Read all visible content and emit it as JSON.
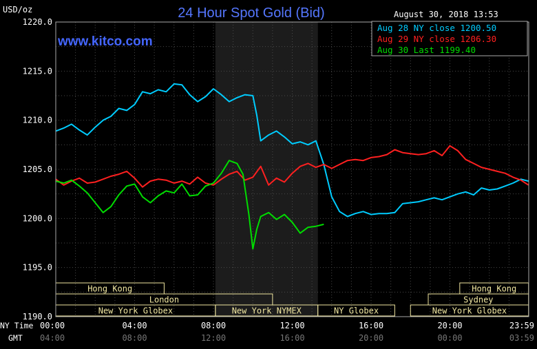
{
  "chart_data": {
    "type": "line",
    "title": "24 Hour Spot Gold (Bid)",
    "ylabel": "USD/oz",
    "website": "www.kitco.com",
    "timestamp": "August 30, 2018 13:53",
    "ylim": [
      1190,
      1220
    ],
    "y_ticks": [
      "1220.0",
      "1215.0",
      "1210.0",
      "1205.0",
      "1200.0",
      "1195.0",
      "1190.0"
    ],
    "xlim": [
      0,
      24
    ],
    "x_ticks_ny": [
      "00:00",
      "04:00",
      "08:00",
      "12:00",
      "16:00",
      "20:00",
      "23:59"
    ],
    "x_ticks_gmt": [
      "04:00",
      "08:00",
      "12:00",
      "16:00",
      "20:00",
      "00:00",
      "03:59"
    ],
    "x_axis_label_ny": "NY Time",
    "x_axis_label_gmt": "GMT",
    "shaded_range": [
      8.1,
      13.3
    ],
    "grid": true,
    "legend_position": "top-right",
    "legend": [
      "Aug 28 NY close 1200.50",
      "Aug 29 NY close 1206.30",
      "Aug 30 Last 1199.40"
    ],
    "colors": {
      "aug28": "#00ccff",
      "aug29": "#ff2020",
      "aug30": "#00dd00",
      "title": "#5577ff",
      "website": "#4466ff",
      "session": "#f0e6a0"
    },
    "sessions": [
      {
        "name": "Hong Kong",
        "start": 0,
        "end": 5.5,
        "row": 0
      },
      {
        "name": "London",
        "start": 0,
        "end": 11,
        "row": 1
      },
      {
        "name": "New York Globex",
        "start": 0,
        "end": 8.1,
        "row": 2
      },
      {
        "name": "New York NYMEX",
        "start": 8.1,
        "end": 13.3,
        "row": 2
      },
      {
        "name": "NY Globex",
        "start": 13.3,
        "end": 17.2,
        "row": 2
      },
      {
        "name": "Hong Kong",
        "start": 20.5,
        "end": 23.99,
        "row": 0
      },
      {
        "name": "Sydney",
        "start": 18.9,
        "end": 23.99,
        "row": 1
      },
      {
        "name": "New York Globex",
        "start": 18,
        "end": 23.99,
        "row": 2
      }
    ],
    "series": [
      {
        "name": "Aug 28 NY close 1200.50",
        "x": [
          0,
          0.4,
          0.8,
          1.2,
          1.6,
          2.0,
          2.4,
          2.8,
          3.2,
          3.6,
          4.0,
          4.4,
          4.8,
          5.2,
          5.6,
          6.0,
          6.4,
          6.8,
          7.2,
          7.6,
          8.0,
          8.4,
          8.8,
          9.2,
          9.6,
          10.0,
          10.2,
          10.4,
          10.8,
          11.2,
          11.6,
          12.0,
          12.4,
          12.8,
          13.2,
          13.6,
          14.0,
          14.4,
          14.8,
          15.2,
          15.6,
          16.0,
          16.4,
          16.8,
          17.2,
          17.6,
          18.0,
          18.4,
          18.8,
          19.2,
          19.6,
          20.0,
          20.4,
          20.8,
          21.2,
          21.6,
          22.0,
          22.4,
          22.8,
          23.2,
          23.6,
          23.99
        ],
        "values": [
          1208.9,
          1209.2,
          1209.6,
          1209.0,
          1208.5,
          1209.3,
          1210.0,
          1210.4,
          1211.2,
          1211.0,
          1211.6,
          1212.9,
          1212.7,
          1213.1,
          1212.9,
          1213.7,
          1213.6,
          1212.6,
          1211.9,
          1212.4,
          1213.2,
          1212.6,
          1211.9,
          1212.3,
          1212.6,
          1212.5,
          1210.5,
          1207.9,
          1208.5,
          1208.9,
          1208.3,
          1207.6,
          1207.8,
          1207.5,
          1207.9,
          1205.5,
          1202.2,
          1200.7,
          1200.2,
          1200.5,
          1200.7,
          1200.4,
          1200.5,
          1200.5,
          1200.6,
          1201.5,
          1201.6,
          1201.7,
          1201.9,
          1202.1,
          1201.9,
          1202.2,
          1202.5,
          1202.7,
          1202.4,
          1203.1,
          1202.9,
          1203.0,
          1203.3,
          1203.6,
          1204.0,
          1203.8
        ]
      },
      {
        "name": "Aug 29 NY close 1206.30",
        "x": [
          0,
          0.4,
          0.8,
          1.2,
          1.6,
          2.0,
          2.4,
          2.8,
          3.2,
          3.6,
          4.0,
          4.4,
          4.8,
          5.2,
          5.6,
          6.0,
          6.4,
          6.8,
          7.2,
          7.6,
          8.0,
          8.4,
          8.8,
          9.2,
          9.6,
          10.0,
          10.4,
          10.8,
          11.2,
          11.6,
          12.0,
          12.4,
          12.8,
          13.2,
          13.6,
          14.0,
          14.4,
          14.8,
          15.2,
          15.6,
          16.0,
          16.4,
          16.8,
          17.2,
          17.6,
          18.0,
          18.4,
          18.8,
          19.2,
          19.6,
          20.0,
          20.4,
          20.8,
          21.2,
          21.6,
          22.0,
          22.4,
          22.8,
          23.2,
          23.6,
          23.99
        ],
        "values": [
          1204.0,
          1203.4,
          1203.8,
          1204.1,
          1203.6,
          1203.7,
          1204.0,
          1204.3,
          1204.5,
          1204.8,
          1204.1,
          1203.2,
          1203.8,
          1204.0,
          1203.9,
          1203.6,
          1203.8,
          1203.5,
          1204.2,
          1203.6,
          1203.4,
          1204.0,
          1204.5,
          1204.8,
          1203.9,
          1204.2,
          1205.3,
          1203.4,
          1204.1,
          1203.7,
          1204.6,
          1205.3,
          1205.6,
          1205.2,
          1205.5,
          1205.1,
          1205.5,
          1205.9,
          1206.0,
          1205.9,
          1206.2,
          1206.3,
          1206.5,
          1207.0,
          1206.7,
          1206.6,
          1206.5,
          1206.6,
          1206.9,
          1206.4,
          1207.4,
          1206.9,
          1206.0,
          1205.6,
          1205.2,
          1205.0,
          1204.8,
          1204.6,
          1204.2,
          1203.9,
          1203.4
        ]
      },
      {
        "name": "Aug 30 Last 1199.40",
        "x": [
          0,
          0.4,
          0.8,
          1.2,
          1.6,
          2.0,
          2.4,
          2.8,
          3.2,
          3.6,
          4.0,
          4.4,
          4.8,
          5.2,
          5.6,
          6.0,
          6.4,
          6.8,
          7.2,
          7.6,
          8.0,
          8.4,
          8.8,
          9.2,
          9.5,
          9.8,
          10.0,
          10.2,
          10.4,
          10.8,
          11.2,
          11.6,
          12.0,
          12.4,
          12.8,
          13.2,
          13.6
        ],
        "values": [
          1203.8,
          1203.6,
          1203.9,
          1203.3,
          1202.6,
          1201.6,
          1200.6,
          1201.2,
          1202.4,
          1203.3,
          1203.5,
          1202.2,
          1201.6,
          1202.3,
          1202.8,
          1202.6,
          1203.5,
          1202.3,
          1202.4,
          1203.3,
          1203.6,
          1204.6,
          1205.9,
          1205.6,
          1204.5,
          1200.4,
          1196.9,
          1198.9,
          1200.2,
          1200.6,
          1199.9,
          1200.4,
          1199.6,
          1198.5,
          1199.1,
          1199.2,
          1199.4
        ]
      }
    ]
  }
}
